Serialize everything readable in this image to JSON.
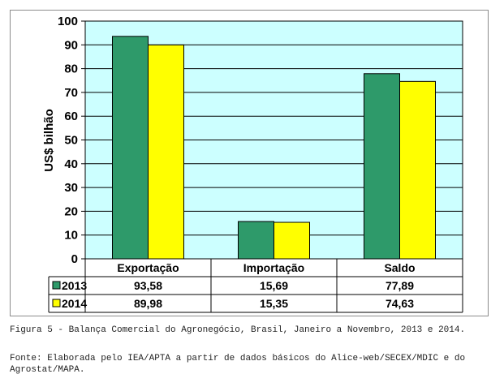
{
  "chart_data": {
    "type": "bar",
    "ylabel": "US$ bilhão",
    "ylim": [
      0,
      100
    ],
    "yticks": [
      "0",
      "10",
      "20",
      "30",
      "40",
      "50",
      "60",
      "70",
      "80",
      "90",
      "100"
    ],
    "categories": [
      "Exportação",
      "Importação",
      "Saldo"
    ],
    "series": [
      {
        "name": "2013",
        "values": [
          93.58,
          15.69,
          77.89
        ],
        "labels": [
          "93,58",
          "15,69",
          "77,89"
        ],
        "color": "#2e9a6a"
      },
      {
        "name": "2014",
        "values": [
          89.98,
          15.35,
          74.63
        ],
        "labels": [
          "89,98",
          "15,35",
          "74,63"
        ],
        "color": "#ffff00"
      }
    ],
    "plot_background": "#ccffff",
    "grid": true,
    "data_table": true
  },
  "caption": "Figura 5 - Balança Comercial do Agronegócio, Brasil, Janeiro a Novembro, 2013 e 2014.",
  "source": "Fonte: Elaborada pelo IEA/APTA a partir de dados básicos do Alice-web/SECEX/MDIC e do Agrostat/MAPA."
}
